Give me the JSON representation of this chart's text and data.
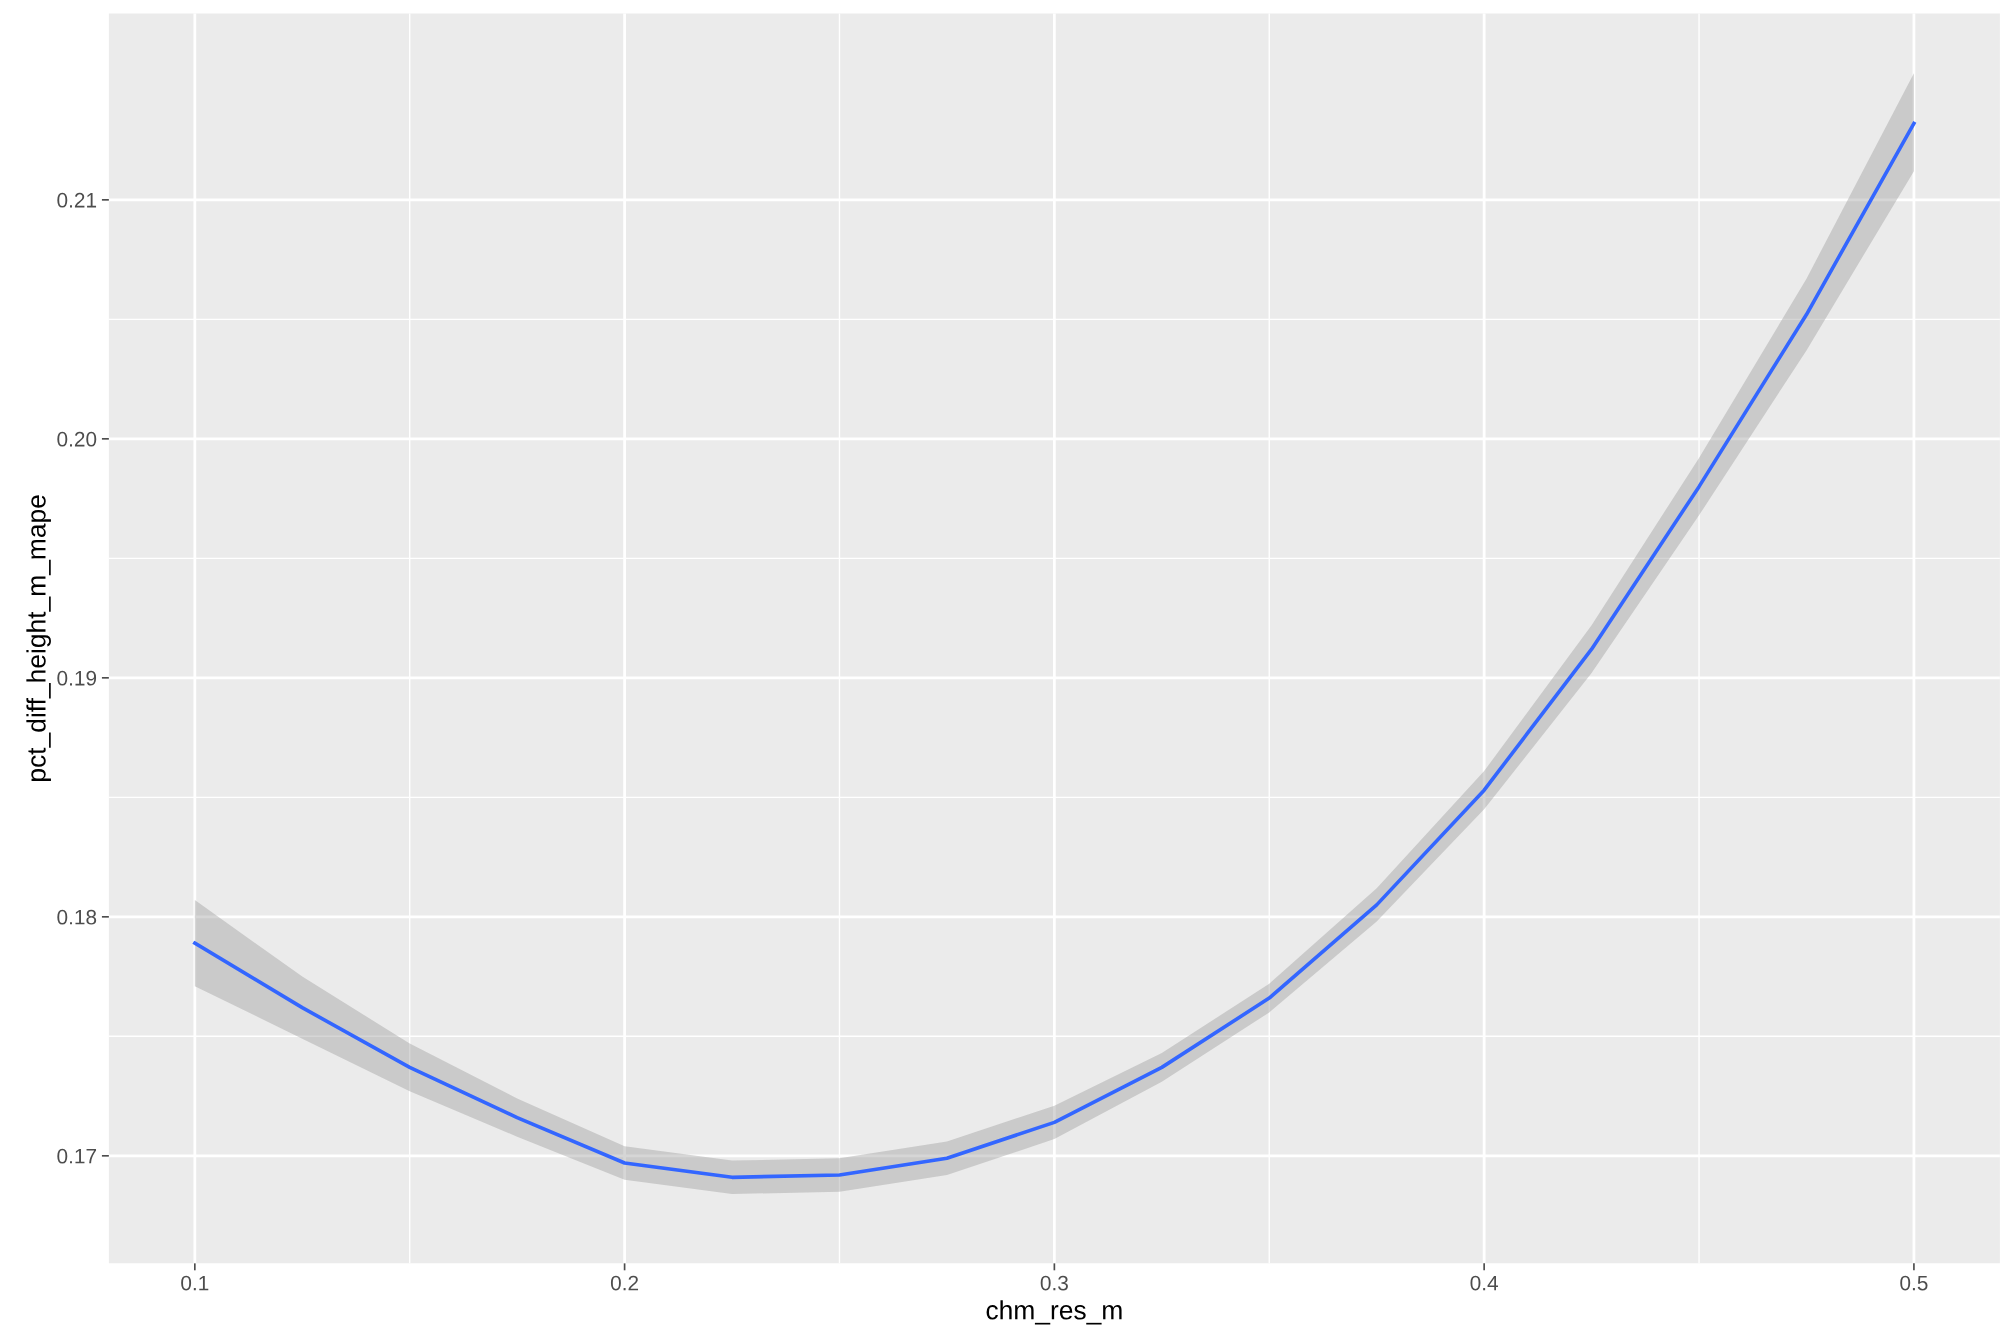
{
  "chart_data": {
    "type": "line",
    "xlabel": "chm_res_m",
    "ylabel": "pct_diff_height_m_mape",
    "x": [
      0.1,
      0.125,
      0.15,
      0.175,
      0.2,
      0.225,
      0.25,
      0.275,
      0.3,
      0.325,
      0.35,
      0.375,
      0.4,
      0.425,
      0.45,
      0.475,
      0.5
    ],
    "series": [
      {
        "color": "#3366ff",
        "values": [
          0.1789,
          0.1762,
          0.1737,
          0.1716,
          0.1697,
          0.1691,
          0.1692,
          0.1699,
          0.1714,
          0.1737,
          0.1766,
          0.1805,
          0.1853,
          0.1912,
          0.198,
          0.2052,
          0.2132
        ],
        "lower": [
          0.1771,
          0.1749,
          0.1727,
          0.1708,
          0.169,
          0.1684,
          0.1685,
          0.1692,
          0.1707,
          0.1731,
          0.176,
          0.1798,
          0.1845,
          0.1902,
          0.1968,
          0.2037,
          0.2112
        ],
        "upper": [
          0.1807,
          0.1775,
          0.1747,
          0.1724,
          0.1704,
          0.1698,
          0.1699,
          0.1706,
          0.1721,
          0.1743,
          0.1772,
          0.1812,
          0.1861,
          0.1922,
          0.1992,
          0.2067,
          0.2153
        ]
      }
    ],
    "xlim": [
      0.08,
      0.52
    ],
    "ylim": [
      0.1655,
      0.2178
    ],
    "xticks": [
      0.1,
      0.2,
      0.3,
      0.4,
      0.5
    ],
    "yticks": [
      0.17,
      0.18,
      0.19,
      {
        "value": 0.2,
        "label": "0.20"
      },
      0.21
    ],
    "grid": true,
    "marker": "none",
    "line_style": "solid"
  }
}
